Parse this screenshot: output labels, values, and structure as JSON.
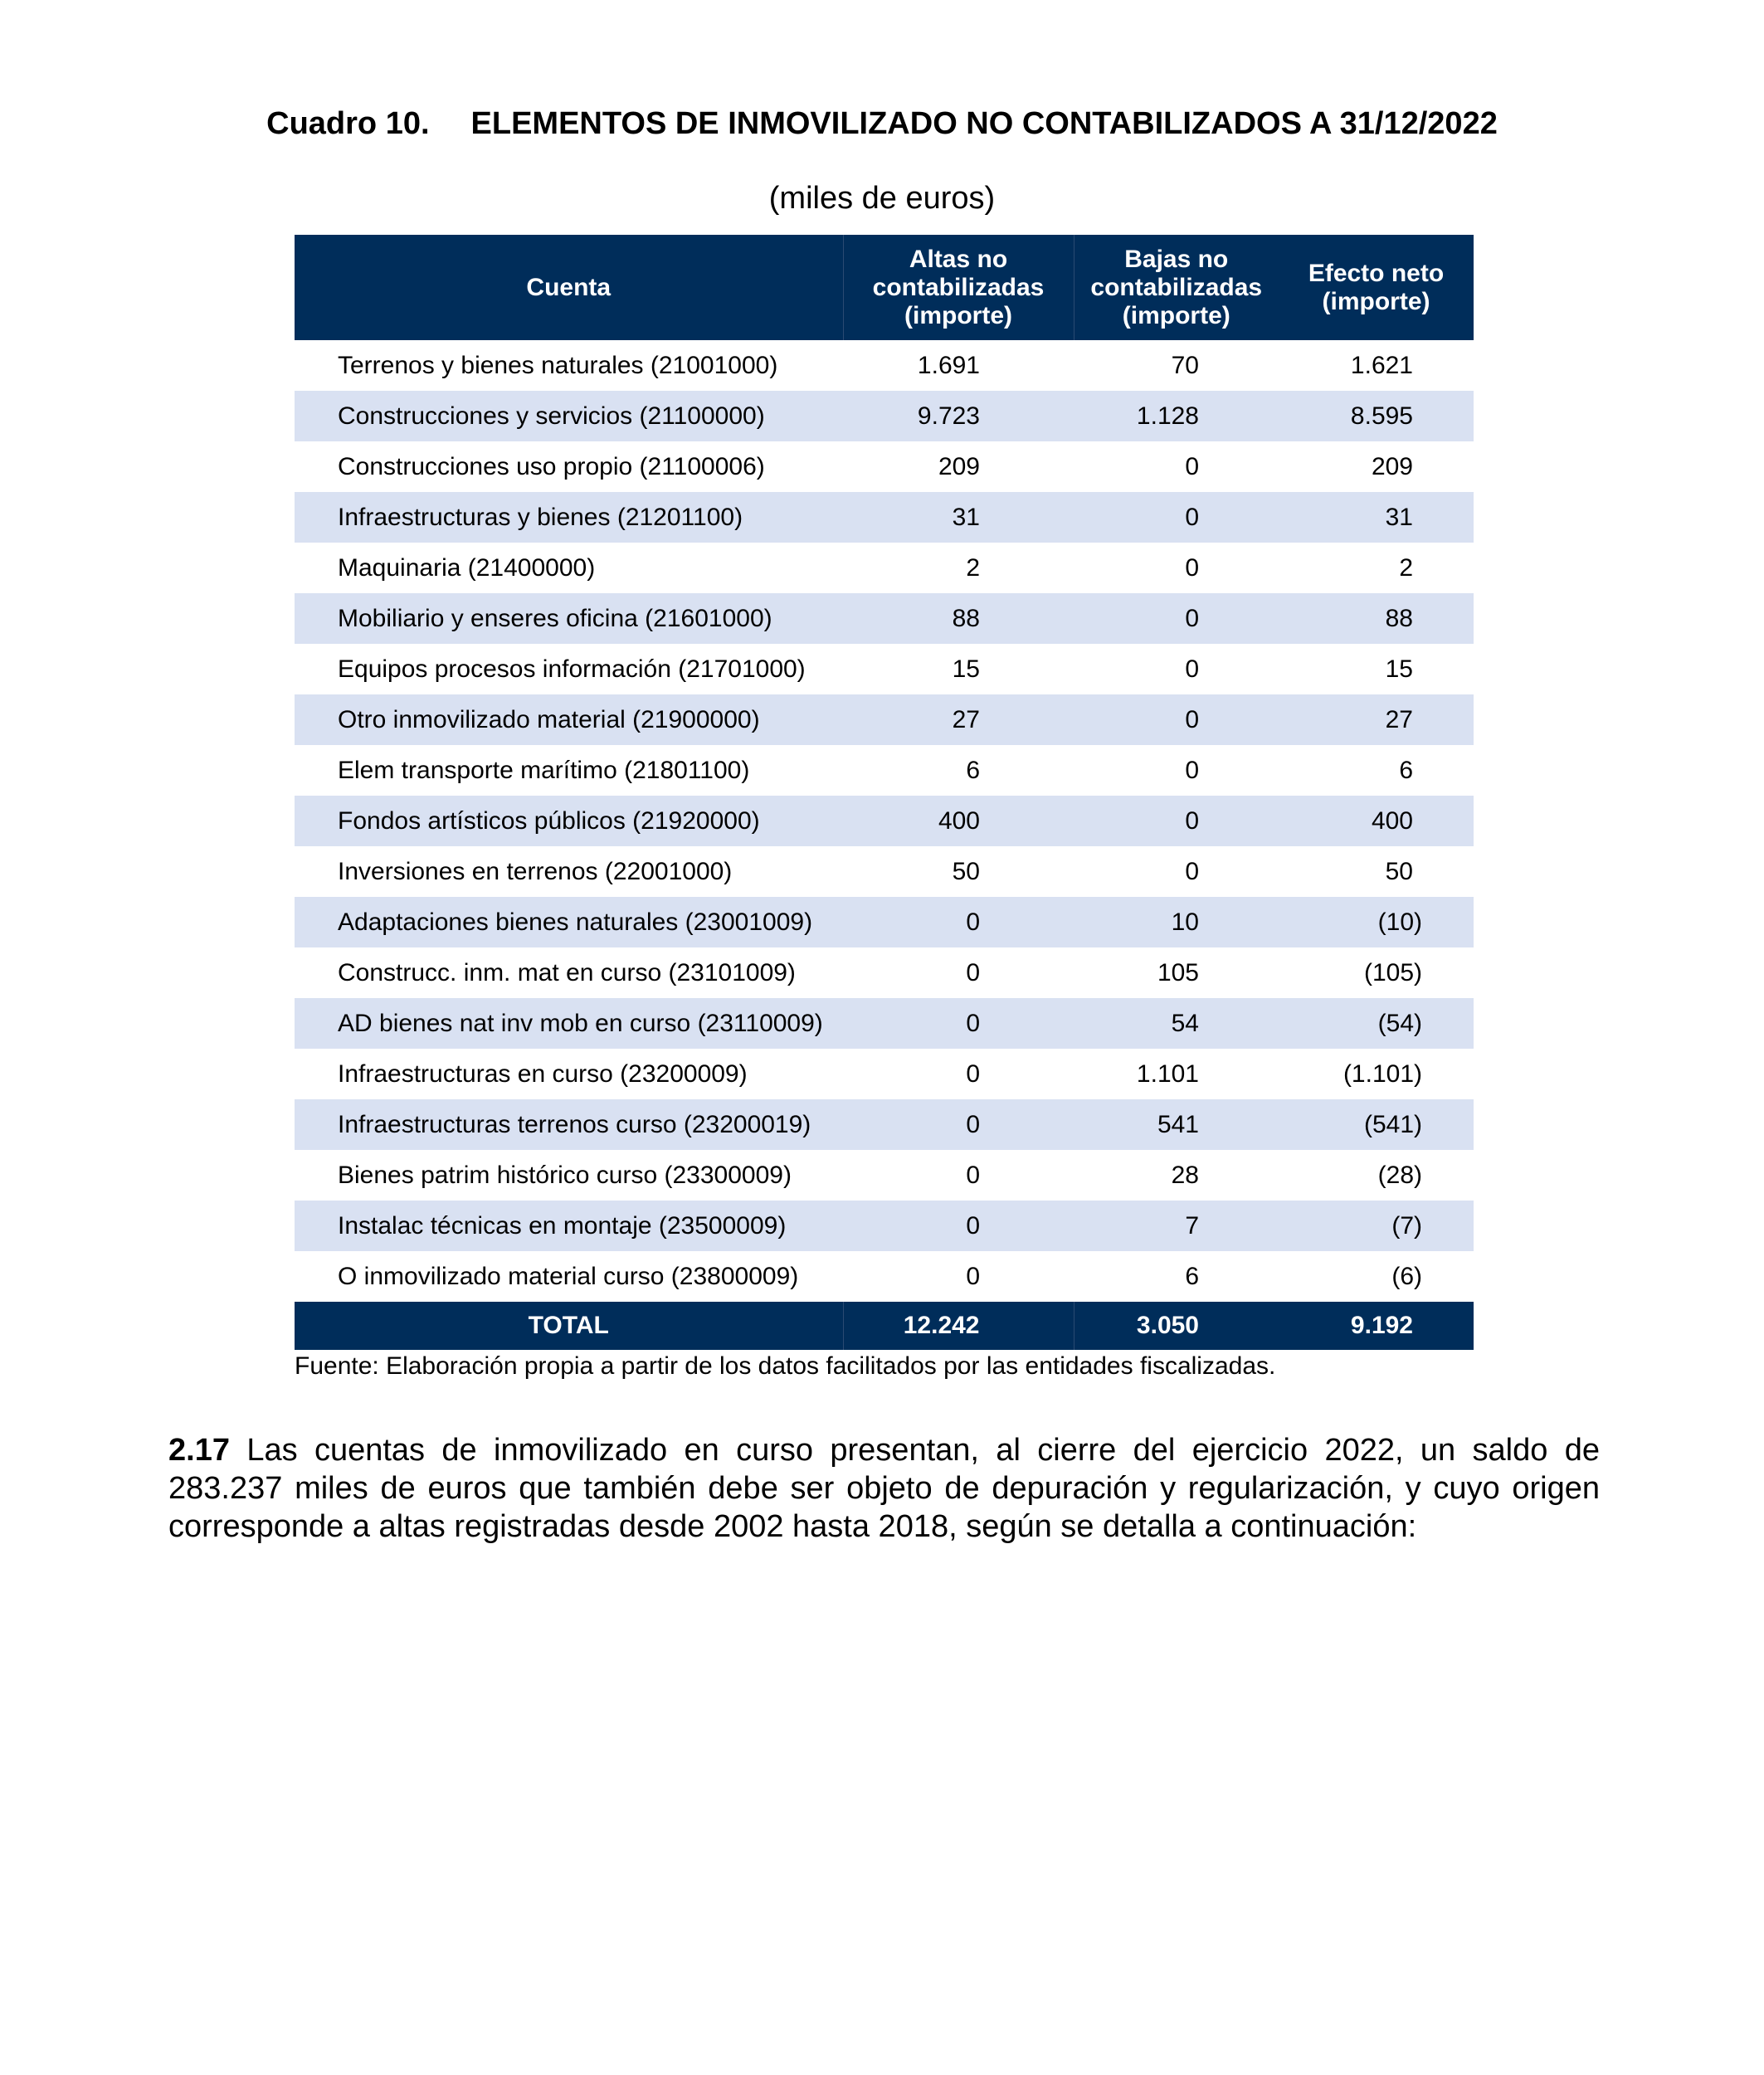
{
  "title": {
    "number": "Cuadro 10.",
    "text": "ELEMENTOS DE INMOVILIZADO NO CONTABILIZADOS A 31/12/2022"
  },
  "subtitle": "(miles de euros)",
  "table": {
    "headers": [
      [
        "Cuenta"
      ],
      [
        "Altas no",
        "contabilizadas",
        "(importe)"
      ],
      [
        "Bajas no",
        "contabilizadas",
        "(importe)"
      ],
      [
        "Efecto neto",
        "(importe)"
      ]
    ],
    "rows": [
      [
        "Terrenos y bienes naturales (21001000)",
        "1.691",
        "70",
        "1.621"
      ],
      [
        "Construcciones y servicios (21100000)",
        "9.723",
        "1.128",
        "8.595"
      ],
      [
        "Construcciones uso propio (21100006)",
        "209",
        "0",
        "209"
      ],
      [
        "Infraestructuras y bienes (21201100)",
        "31",
        "0",
        "31"
      ],
      [
        "Maquinaria (21400000)",
        "2",
        "0",
        "2"
      ],
      [
        "Mobiliario y enseres oficina (21601000)",
        "88",
        "0",
        "88"
      ],
      [
        "Equipos procesos información (21701000)",
        "15",
        "0",
        "15"
      ],
      [
        "Otro inmovilizado material (21900000)",
        "27",
        "0",
        "27"
      ],
      [
        "Elem transporte marítimo (21801100)",
        "6",
        "0",
        "6"
      ],
      [
        "Fondos artísticos públicos (21920000)",
        "400",
        "0",
        "400"
      ],
      [
        "Inversiones en terrenos (22001000)",
        "50",
        "0",
        "50"
      ],
      [
        "Adaptaciones bienes naturales (23001009)",
        "0",
        "10",
        "(10)"
      ],
      [
        "Construcc. inm. mat en curso (23101009)",
        "0",
        "105",
        "(105)"
      ],
      [
        "AD bienes nat inv mob en curso (23110009)",
        "0",
        "54",
        "(54)"
      ],
      [
        "Infraestructuras en curso (23200009)",
        "0",
        "1.101",
        "(1.101)"
      ],
      [
        "Infraestructuras terrenos curso (23200019)",
        "0",
        "541",
        "(541)"
      ],
      [
        "Bienes patrim histórico curso (23300009)",
        "0",
        "28",
        "(28)"
      ],
      [
        "Instalac técnicas en montaje (23500009)",
        "0",
        "7",
        "(7)"
      ],
      [
        "O inmovilizado material curso (23800009)",
        "0",
        "6",
        "(6)"
      ]
    ],
    "total": [
      "TOTAL",
      "12.242",
      "3.050",
      "9.192"
    ]
  },
  "source": "Fuente: Elaboración propia a partir de los datos facilitados por las entidades fiscalizadas.",
  "paragraph": {
    "number": "2.17",
    "text": "Las cuentas de inmovilizado en curso presentan, al cierre del ejercicio 2022, un saldo de 283.237 miles de euros que también debe ser objeto de depuración y regularización, y cuyo origen corresponde a altas registradas desde 2002 hasta 2018, según se detalla a continuación:"
  },
  "colors": {
    "header_bg": "#002D5A",
    "stripe": "#D9E1F2"
  }
}
